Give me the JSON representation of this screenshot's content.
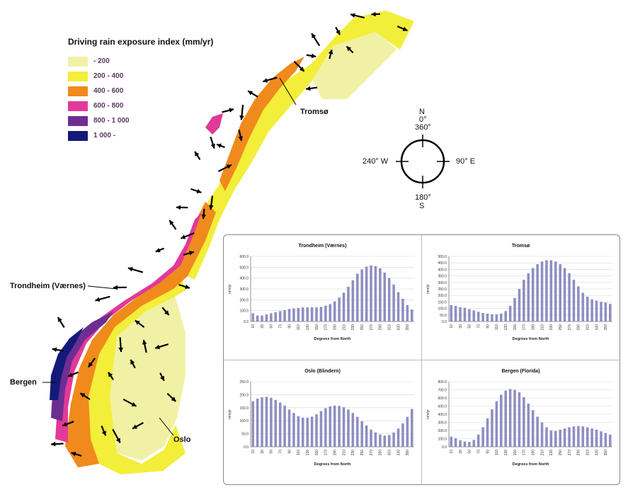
{
  "legend": {
    "title": "Driving rain exposure index (mm/yr)",
    "items": [
      {
        "label": "- 200",
        "color": "#f1f1a6"
      },
      {
        "label": "200 - 400",
        "color": "#f2ee3a"
      },
      {
        "label": "400 - 600",
        "color": "#f08a1c"
      },
      {
        "label": "600 - 800",
        "color": "#e2399a"
      },
      {
        "label": "800 - 1 000",
        "color": "#6e2e91"
      },
      {
        "label": "1 000 -",
        "color": "#141a7a"
      }
    ]
  },
  "cities": {
    "tromso": "Tromsø",
    "trondheim": "Trondheim (Værnes)",
    "bergen": "Bergen",
    "oslo": "Oslo"
  },
  "compass": {
    "north_letter": "N",
    "north_deg": "0°",
    "north_deg2": "360°",
    "east": "90°  E",
    "west": "240°  W",
    "south_deg": "180°",
    "south_letter": "S"
  },
  "chart_data": [
    {
      "type": "bar",
      "title": "Trondheim (Værnes)",
      "xlabel": "Degrees from North",
      "ylabel": "mm/yr",
      "ylim": [
        0,
        600
      ],
      "yticks": [
        "0.0",
        "100.0",
        "200.0",
        "300.0",
        "400.0",
        "500.0",
        "600.0"
      ],
      "categories": [
        "10",
        "20",
        "30",
        "40",
        "50",
        "60",
        "70",
        "80",
        "90",
        "100",
        "110",
        "120",
        "130",
        "140",
        "150",
        "160",
        "170",
        "180",
        "190",
        "200",
        "210",
        "220",
        "230",
        "240",
        "250",
        "260",
        "270",
        "280",
        "290",
        "300",
        "310",
        "320",
        "330",
        "340",
        "350",
        "360"
      ],
      "xtick_labels": [
        "10",
        "30",
        "50",
        "70",
        "90",
        "110",
        "130",
        "150",
        "170",
        "190",
        "210",
        "230",
        "250",
        "270",
        "290",
        "310",
        "330",
        "350"
      ],
      "values": [
        75,
        55,
        55,
        65,
        75,
        85,
        95,
        105,
        115,
        120,
        125,
        130,
        130,
        130,
        130,
        135,
        145,
        160,
        185,
        220,
        265,
        320,
        380,
        440,
        480,
        505,
        515,
        510,
        490,
        450,
        400,
        340,
        270,
        210,
        150,
        110
      ],
      "color": "#8e8ec2"
    },
    {
      "type": "bar",
      "title": "Tromsø",
      "xlabel": "Degrees from North",
      "ylabel": "mm/yr",
      "ylim": [
        0,
        500
      ],
      "yticks": [
        "0.0",
        "50.0",
        "100.0",
        "150.0",
        "200.0",
        "250.0",
        "300.0",
        "350.0",
        "400.0",
        "450.0",
        "500.0"
      ],
      "categories": [
        "10",
        "20",
        "30",
        "40",
        "50",
        "60",
        "70",
        "80",
        "90",
        "100",
        "110",
        "120",
        "130",
        "140",
        "150",
        "160",
        "170",
        "180",
        "190",
        "200",
        "210",
        "220",
        "230",
        "240",
        "250",
        "260",
        "270",
        "280",
        "290",
        "300",
        "310",
        "320",
        "330",
        "340",
        "350",
        "360"
      ],
      "xtick_labels": [
        "10",
        "30",
        "50",
        "70",
        "90",
        "110",
        "130",
        "150",
        "170",
        "190",
        "210",
        "230",
        "250",
        "270",
        "290",
        "310",
        "330",
        "350"
      ],
      "values": [
        125,
        120,
        110,
        105,
        95,
        85,
        75,
        65,
        60,
        55,
        55,
        60,
        80,
        120,
        180,
        250,
        320,
        370,
        410,
        440,
        460,
        470,
        470,
        460,
        440,
        410,
        370,
        320,
        270,
        220,
        190,
        170,
        160,
        150,
        145,
        135
      ],
      "color": "#8e8ec2"
    },
    {
      "type": "bar",
      "title": "Oslo (Blindern)",
      "xlabel": "Degrees from North",
      "ylabel": "mm/yr",
      "ylim": [
        0,
        250
      ],
      "yticks": [
        "0.0",
        "50.0",
        "100.0",
        "150.0",
        "200.0",
        "250.0"
      ],
      "categories": [
        "10",
        "20",
        "30",
        "40",
        "50",
        "60",
        "70",
        "80",
        "90",
        "100",
        "110",
        "120",
        "130",
        "140",
        "150",
        "160",
        "170",
        "180",
        "190",
        "200",
        "210",
        "220",
        "230",
        "240",
        "250",
        "260",
        "270",
        "280",
        "290",
        "300",
        "310",
        "320",
        "330",
        "340",
        "350",
        "360"
      ],
      "xtick_labels": [
        "10",
        "30",
        "50",
        "70",
        "90",
        "110",
        "130",
        "150",
        "170",
        "190",
        "210",
        "230",
        "250",
        "270",
        "290",
        "310",
        "330",
        "350"
      ],
      "values": [
        175,
        185,
        190,
        192,
        188,
        180,
        170,
        158,
        143,
        130,
        118,
        112,
        112,
        116,
        125,
        137,
        148,
        155,
        158,
        157,
        152,
        143,
        130,
        115,
        98,
        82,
        66,
        55,
        47,
        43,
        45,
        55,
        70,
        90,
        115,
        145
      ],
      "color": "#8e8ec2"
    },
    {
      "type": "bar",
      "title": "Bergen (Florida)",
      "xlabel": "Degrees from North",
      "ylabel": "mm/yr",
      "ylim": [
        0,
        800
      ],
      "yticks": [
        "0.0",
        "100.0",
        "200.0",
        "300.0",
        "400.0",
        "500.0",
        "600.0",
        "700.0",
        "800.0"
      ],
      "categories": [
        "10",
        "20",
        "30",
        "40",
        "50",
        "60",
        "70",
        "80",
        "90",
        "100",
        "110",
        "120",
        "130",
        "140",
        "150",
        "160",
        "170",
        "180",
        "190",
        "200",
        "210",
        "220",
        "230",
        "240",
        "250",
        "260",
        "270",
        "280",
        "290",
        "300",
        "310",
        "320",
        "330",
        "340",
        "350",
        "360"
      ],
      "xtick_labels": [
        "10",
        "30",
        "50",
        "70",
        "90",
        "110",
        "130",
        "150",
        "170",
        "190",
        "210",
        "230",
        "250",
        "270",
        "290",
        "310",
        "330",
        "350"
      ],
      "values": [
        125,
        105,
        80,
        65,
        60,
        85,
        150,
        240,
        350,
        460,
        560,
        640,
        690,
        710,
        700,
        670,
        610,
        530,
        450,
        370,
        300,
        240,
        200,
        195,
        210,
        225,
        240,
        250,
        255,
        250,
        240,
        225,
        210,
        190,
        170,
        150
      ],
      "color": "#8e8ec2"
    }
  ]
}
